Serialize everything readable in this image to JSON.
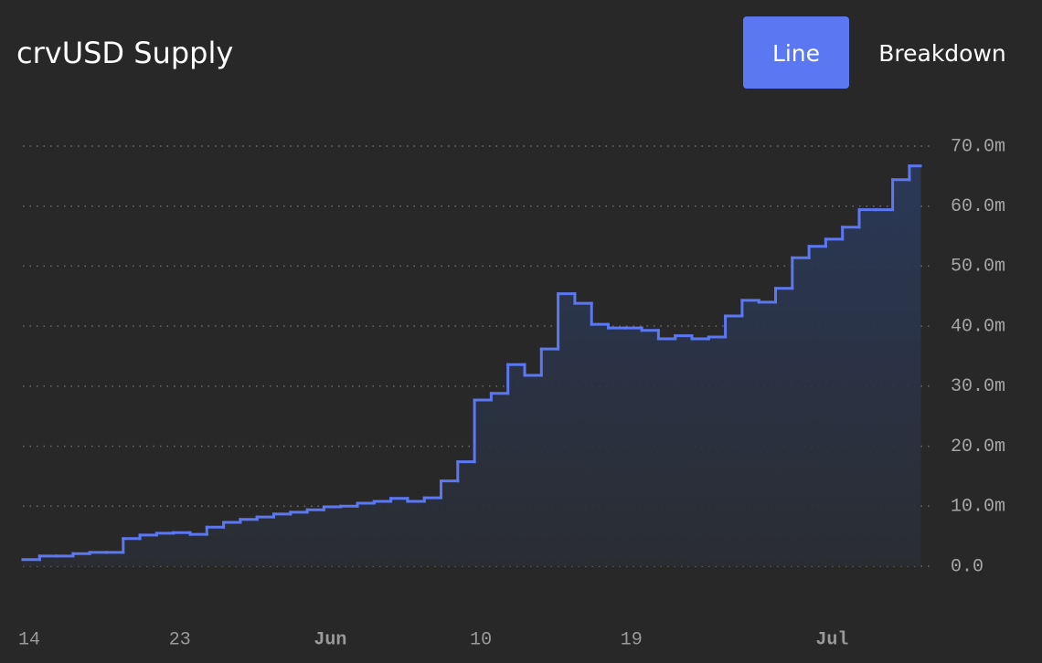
{
  "chart_data": {
    "type": "line",
    "title": "crvUSD Supply",
    "tabs": [
      {
        "label": "Line",
        "active": true
      },
      {
        "label": "Breakdown",
        "active": false
      }
    ],
    "step": true,
    "area": true,
    "grid": true,
    "categories": [
      "14",
      null,
      null,
      null,
      null,
      null,
      null,
      null,
      null,
      "23",
      null,
      null,
      null,
      null,
      null,
      null,
      null,
      null,
      "Jun",
      null,
      null,
      null,
      null,
      null,
      null,
      null,
      null,
      "10",
      null,
      null,
      null,
      null,
      null,
      null,
      null,
      null,
      "19",
      null,
      null,
      null,
      null,
      null,
      null,
      null,
      null,
      null,
      null,
      null,
      "Jul",
      null,
      null,
      null,
      null,
      null
    ],
    "series": [
      {
        "name": "crvUSD Supply",
        "color": "#5b77f2",
        "values": [
          1.1,
          1.7,
          1.7,
          2.1,
          2.3,
          2.3,
          4.6,
          5.2,
          5.5,
          5.6,
          5.3,
          6.5,
          7.3,
          7.8,
          8.2,
          8.7,
          9.0,
          9.4,
          9.9,
          10.0,
          10.5,
          10.8,
          11.3,
          10.8,
          11.4,
          14.2,
          17.4,
          27.7,
          28.8,
          33.6,
          31.8,
          36.2,
          45.4,
          43.8,
          40.3,
          39.7,
          39.7,
          39.3,
          37.9,
          38.4,
          37.9,
          38.2,
          41.7,
          44.3,
          44.0,
          46.3,
          51.4,
          53.3,
          54.5,
          56.5,
          59.4,
          59.4,
          64.4,
          66.7
        ]
      }
    ],
    "ylim": [
      0,
      70
    ],
    "yticks": [
      {
        "value": 0,
        "label": "0.0"
      },
      {
        "value": 10,
        "label": "10.0m"
      },
      {
        "value": 20,
        "label": "20.0m"
      },
      {
        "value": 30,
        "label": "30.0m"
      },
      {
        "value": 40,
        "label": "40.0m"
      },
      {
        "value": 50,
        "label": "50.0m"
      },
      {
        "value": 60,
        "label": "60.0m"
      },
      {
        "value": 70,
        "label": "70.0m"
      }
    ]
  }
}
